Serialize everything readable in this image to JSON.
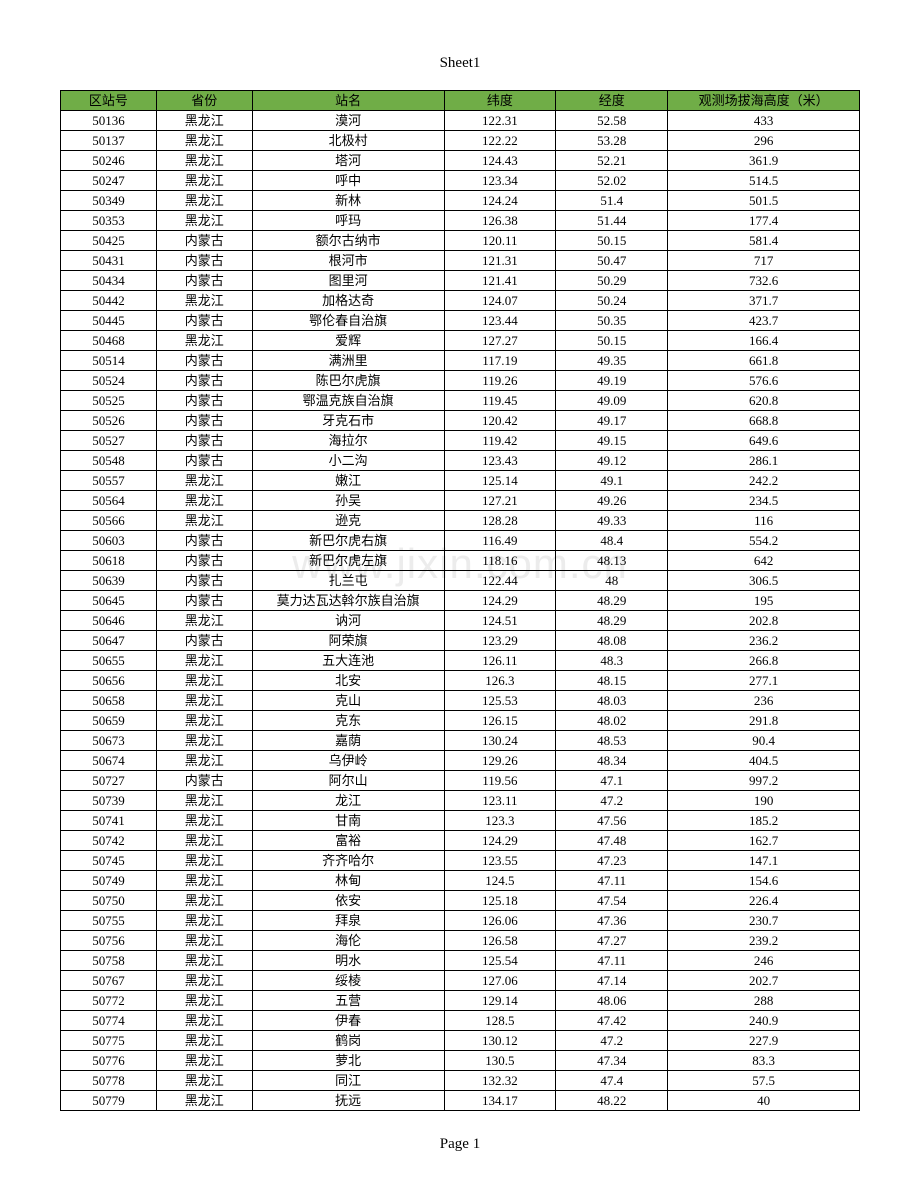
{
  "page": {
    "title": "Sheet1",
    "footer": "Page 1"
  },
  "watermark": "www.jixin.com.cn",
  "table": {
    "header_bg": "#70ad47",
    "border_color": "#000000",
    "columns": [
      {
        "key": "station_id",
        "label": "区站号",
        "width": "12%"
      },
      {
        "key": "province",
        "label": "省份",
        "width": "12%"
      },
      {
        "key": "station_name",
        "label": "站名",
        "width": "24%"
      },
      {
        "key": "latitude",
        "label": "纬度",
        "width": "14%"
      },
      {
        "key": "longitude",
        "label": "经度",
        "width": "14%"
      },
      {
        "key": "elevation",
        "label": "观测场拔海高度（米）",
        "width": "24%"
      }
    ],
    "rows": [
      [
        "50136",
        "黑龙江",
        "漠河",
        "122.31",
        "52.58",
        "433"
      ],
      [
        "50137",
        "黑龙江",
        "北极村",
        "122.22",
        "53.28",
        "296"
      ],
      [
        "50246",
        "黑龙江",
        "塔河",
        "124.43",
        "52.21",
        "361.9"
      ],
      [
        "50247",
        "黑龙江",
        "呼中",
        "123.34",
        "52.02",
        "514.5"
      ],
      [
        "50349",
        "黑龙江",
        "新林",
        "124.24",
        "51.4",
        "501.5"
      ],
      [
        "50353",
        "黑龙江",
        "呼玛",
        "126.38",
        "51.44",
        "177.4"
      ],
      [
        "50425",
        "内蒙古",
        "额尔古纳市",
        "120.11",
        "50.15",
        "581.4"
      ],
      [
        "50431",
        "内蒙古",
        "根河市",
        "121.31",
        "50.47",
        "717"
      ],
      [
        "50434",
        "内蒙古",
        "图里河",
        "121.41",
        "50.29",
        "732.6"
      ],
      [
        "50442",
        "黑龙江",
        "加格达奇",
        "124.07",
        "50.24",
        "371.7"
      ],
      [
        "50445",
        "内蒙古",
        "鄂伦春自治旗",
        "123.44",
        "50.35",
        "423.7"
      ],
      [
        "50468",
        "黑龙江",
        "爱辉",
        "127.27",
        "50.15",
        "166.4"
      ],
      [
        "50514",
        "内蒙古",
        "满洲里",
        "117.19",
        "49.35",
        "661.8"
      ],
      [
        "50524",
        "内蒙古",
        "陈巴尔虎旗",
        "119.26",
        "49.19",
        "576.6"
      ],
      [
        "50525",
        "内蒙古",
        "鄂温克族自治旗",
        "119.45",
        "49.09",
        "620.8"
      ],
      [
        "50526",
        "内蒙古",
        "牙克石市",
        "120.42",
        "49.17",
        "668.8"
      ],
      [
        "50527",
        "内蒙古",
        "海拉尔",
        "119.42",
        "49.15",
        "649.6"
      ],
      [
        "50548",
        "内蒙古",
        "小二沟",
        "123.43",
        "49.12",
        "286.1"
      ],
      [
        "50557",
        "黑龙江",
        "嫩江",
        "125.14",
        "49.1",
        "242.2"
      ],
      [
        "50564",
        "黑龙江",
        "孙吴",
        "127.21",
        "49.26",
        "234.5"
      ],
      [
        "50566",
        "黑龙江",
        "逊克",
        "128.28",
        "49.33",
        "116"
      ],
      [
        "50603",
        "内蒙古",
        "新巴尔虎右旗",
        "116.49",
        "48.4",
        "554.2"
      ],
      [
        "50618",
        "内蒙古",
        "新巴尔虎左旗",
        "118.16",
        "48.13",
        "642"
      ],
      [
        "50639",
        "内蒙古",
        "扎兰屯",
        "122.44",
        "48",
        "306.5"
      ],
      [
        "50645",
        "内蒙古",
        "莫力达瓦达斡尔族自治旗",
        "124.29",
        "48.29",
        "195"
      ],
      [
        "50646",
        "黑龙江",
        "讷河",
        "124.51",
        "48.29",
        "202.8"
      ],
      [
        "50647",
        "内蒙古",
        "阿荣旗",
        "123.29",
        "48.08",
        "236.2"
      ],
      [
        "50655",
        "黑龙江",
        "五大连池",
        "126.11",
        "48.3",
        "266.8"
      ],
      [
        "50656",
        "黑龙江",
        "北安",
        "126.3",
        "48.15",
        "277.1"
      ],
      [
        "50658",
        "黑龙江",
        "克山",
        "125.53",
        "48.03",
        "236"
      ],
      [
        "50659",
        "黑龙江",
        "克东",
        "126.15",
        "48.02",
        "291.8"
      ],
      [
        "50673",
        "黑龙江",
        "嘉荫",
        "130.24",
        "48.53",
        "90.4"
      ],
      [
        "50674",
        "黑龙江",
        "乌伊岭",
        "129.26",
        "48.34",
        "404.5"
      ],
      [
        "50727",
        "内蒙古",
        "阿尔山",
        "119.56",
        "47.1",
        "997.2"
      ],
      [
        "50739",
        "黑龙江",
        "龙江",
        "123.11",
        "47.2",
        "190"
      ],
      [
        "50741",
        "黑龙江",
        "甘南",
        "123.3",
        "47.56",
        "185.2"
      ],
      [
        "50742",
        "黑龙江",
        "富裕",
        "124.29",
        "47.48",
        "162.7"
      ],
      [
        "50745",
        "黑龙江",
        "齐齐哈尔",
        "123.55",
        "47.23",
        "147.1"
      ],
      [
        "50749",
        "黑龙江",
        "林甸",
        "124.5",
        "47.11",
        "154.6"
      ],
      [
        "50750",
        "黑龙江",
        "依安",
        "125.18",
        "47.54",
        "226.4"
      ],
      [
        "50755",
        "黑龙江",
        "拜泉",
        "126.06",
        "47.36",
        "230.7"
      ],
      [
        "50756",
        "黑龙江",
        "海伦",
        "126.58",
        "47.27",
        "239.2"
      ],
      [
        "50758",
        "黑龙江",
        "明水",
        "125.54",
        "47.11",
        "246"
      ],
      [
        "50767",
        "黑龙江",
        "绥棱",
        "127.06",
        "47.14",
        "202.7"
      ],
      [
        "50772",
        "黑龙江",
        "五营",
        "129.14",
        "48.06",
        "288"
      ],
      [
        "50774",
        "黑龙江",
        "伊春",
        "128.5",
        "47.42",
        "240.9"
      ],
      [
        "50775",
        "黑龙江",
        "鹤岗",
        "130.12",
        "47.2",
        "227.9"
      ],
      [
        "50776",
        "黑龙江",
        "萝北",
        "130.5",
        "47.34",
        "83.3"
      ],
      [
        "50778",
        "黑龙江",
        "同江",
        "132.32",
        "47.4",
        "57.5"
      ],
      [
        "50779",
        "黑龙江",
        "抚远",
        "134.17",
        "48.22",
        "40"
      ]
    ]
  }
}
